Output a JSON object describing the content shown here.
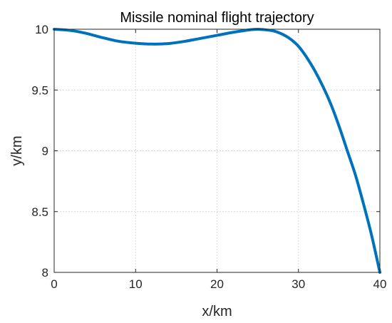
{
  "chart_data": {
    "type": "line",
    "title": "Missile nominal flight trajectory",
    "xlabel": "x/km",
    "ylabel": "y/km",
    "xlim": [
      0,
      40
    ],
    "ylim": [
      8,
      10
    ],
    "xticks": [
      0,
      10,
      20,
      30,
      40
    ],
    "yticks": [
      8,
      8.5,
      9,
      9.5,
      10
    ],
    "xtick_labels": [
      "0",
      "10",
      "20",
      "30",
      "40"
    ],
    "ytick_labels": [
      "8",
      "8.5",
      "9",
      "9.5",
      "10"
    ],
    "grid": true,
    "series": [
      {
        "color": "#0072bd",
        "x": [
          0,
          2,
          4,
          6,
          8,
          10,
          12,
          14,
          16,
          18,
          20,
          22,
          24,
          25,
          26,
          27,
          28,
          29,
          30,
          31,
          32,
          33,
          34,
          35,
          36,
          37,
          38,
          39,
          40
        ],
        "y": [
          10.0,
          9.99,
          9.965,
          9.93,
          9.9,
          9.885,
          9.878,
          9.882,
          9.9,
          9.925,
          9.95,
          9.975,
          9.995,
          10.0,
          9.995,
          9.985,
          9.96,
          9.92,
          9.86,
          9.77,
          9.66,
          9.53,
          9.38,
          9.2,
          9.0,
          8.8,
          8.56,
          8.3,
          8.0
        ]
      }
    ]
  }
}
